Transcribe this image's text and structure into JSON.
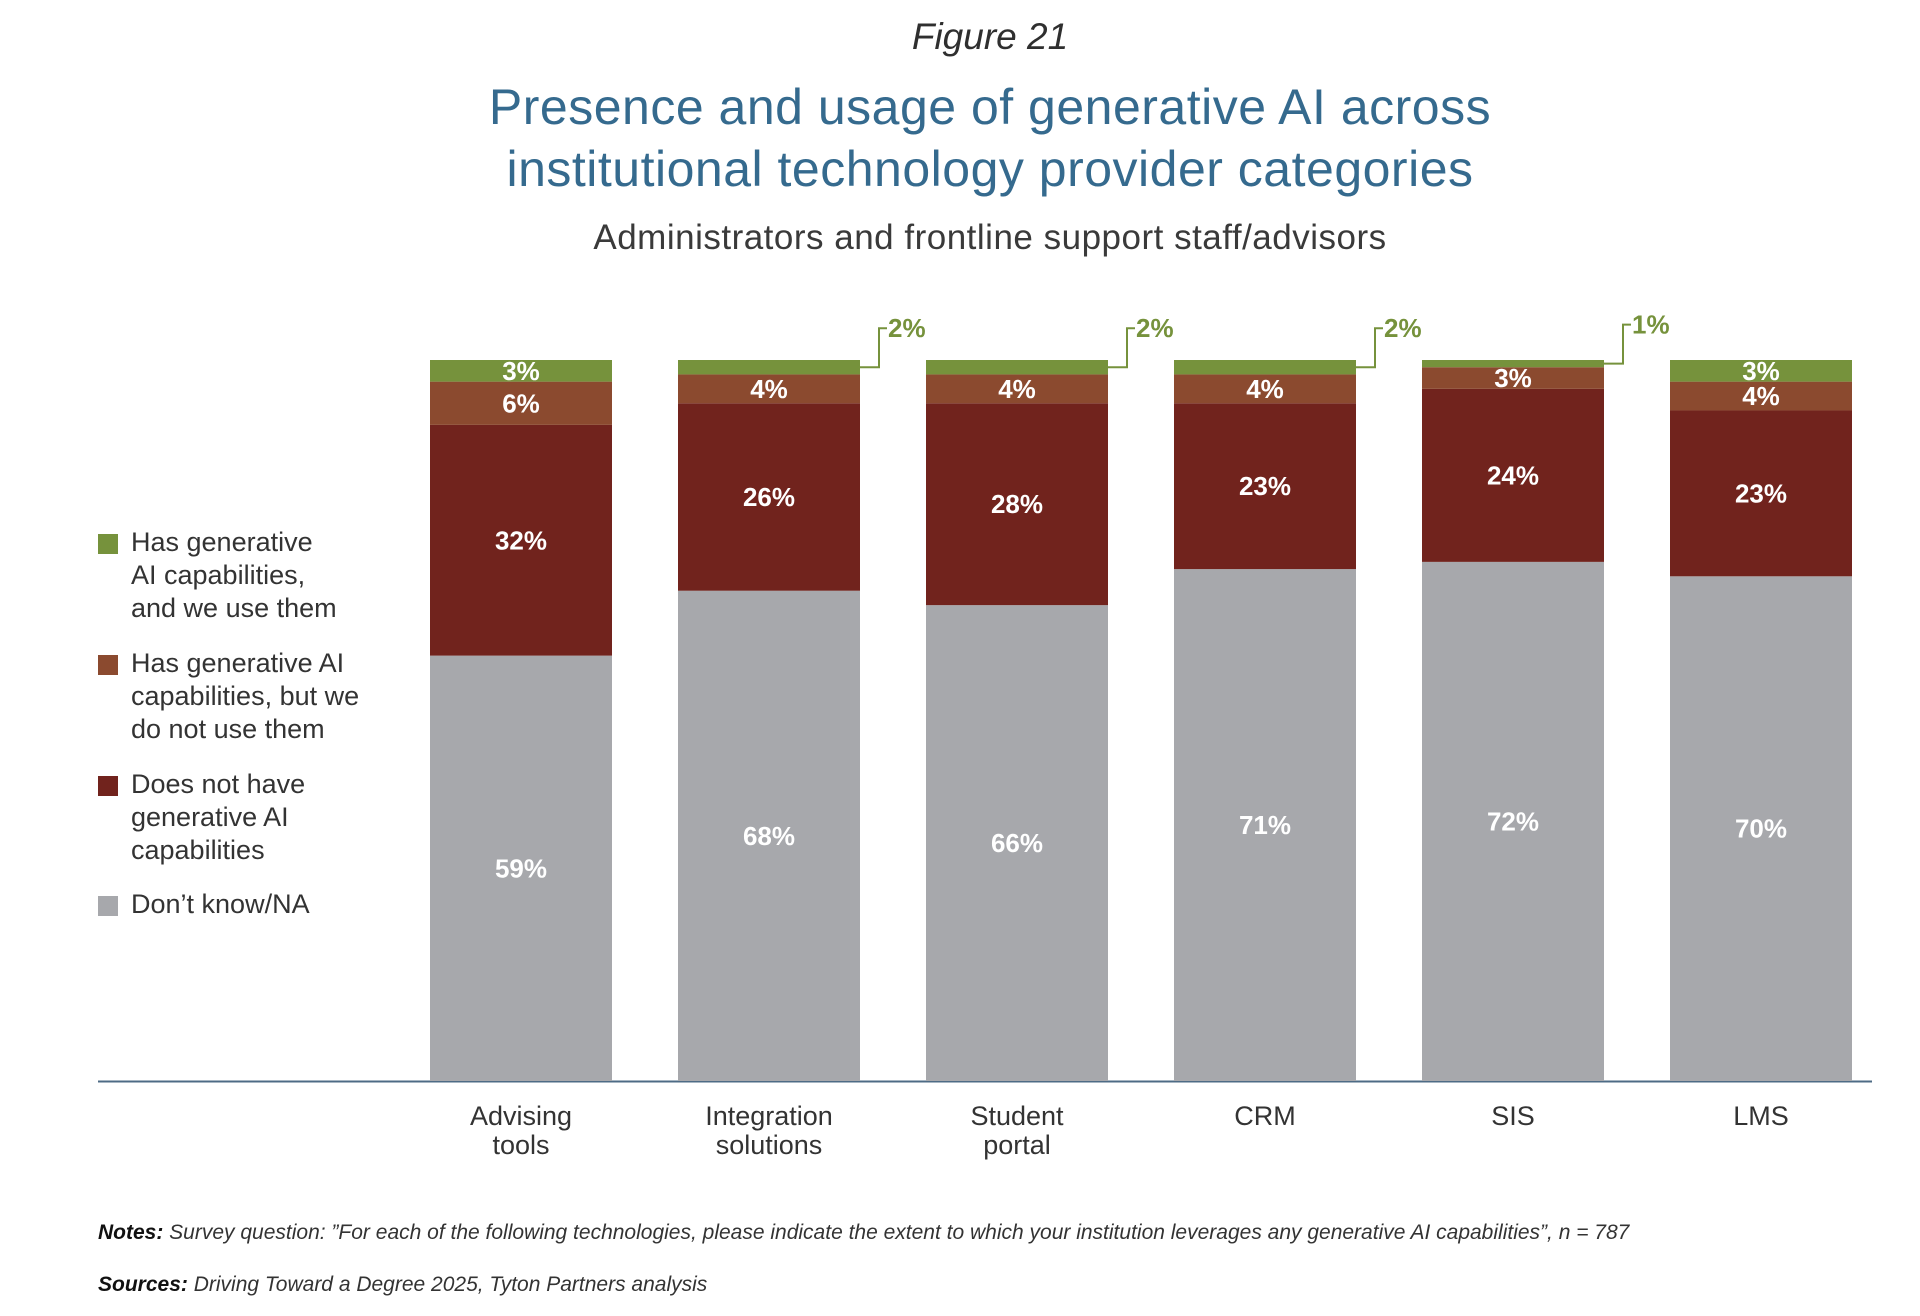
{
  "header": {
    "figure_label": "Figure 21",
    "title_line1": "Presence and usage of generative AI across",
    "title_line2": "institutional technology provider categories",
    "subtitle": "Administrators and frontline support staff/advisors"
  },
  "legend": [
    {
      "label": "Has generative\nAI capabilities,\nand we use them",
      "color": "#76923c"
    },
    {
      "label": "Has generative AI\ncapabilities, but we\ndo not use them",
      "color": "#8b4a2f"
    },
    {
      "label": "Does not have\ngenerative AI\ncapabilities",
      "color": "#71231d"
    },
    {
      "label": "Don’t know/NA",
      "color": "#a7a8ac"
    }
  ],
  "chart_data": {
    "type": "bar",
    "stacked": true,
    "categories": [
      [
        "Advising",
        "tools"
      ],
      [
        "Integration",
        "solutions"
      ],
      [
        "Student",
        "portal"
      ],
      [
        "CRM"
      ],
      [
        "SIS"
      ],
      [
        "LMS"
      ]
    ],
    "series": [
      {
        "name": "Don’t know/NA",
        "color": "#a7a8ac",
        "values": [
          59,
          68,
          66,
          71,
          72,
          70
        ]
      },
      {
        "name": "Does not have generative AI capabilities",
        "color": "#71231d",
        "values": [
          32,
          26,
          28,
          23,
          24,
          23
        ]
      },
      {
        "name": "Has generative AI capabilities, but we do not use them",
        "color": "#8b4a2f",
        "values": [
          6,
          4,
          4,
          4,
          3,
          4
        ]
      },
      {
        "name": "Has generative AI capabilities, and we use them",
        "color": "#76923c",
        "values": [
          3,
          2,
          2,
          2,
          1,
          3
        ]
      }
    ],
    "callouts": [
      "3%",
      "2%",
      "2%",
      "2%",
      "1%",
      "3%"
    ],
    "value_suffix": "%",
    "ylim": [
      0,
      100
    ],
    "grid": false,
    "legend_position": "left"
  },
  "footer": {
    "notes_label": "Notes:",
    "notes_text": " Survey question: ”For each of the following technologies, please indicate the extent to which your institution leverages any generative AI capabilities”, n = 787",
    "sources_label": "Sources:",
    "sources_text": " Driving Toward a Degree 2025, Tyton Partners analysis"
  }
}
